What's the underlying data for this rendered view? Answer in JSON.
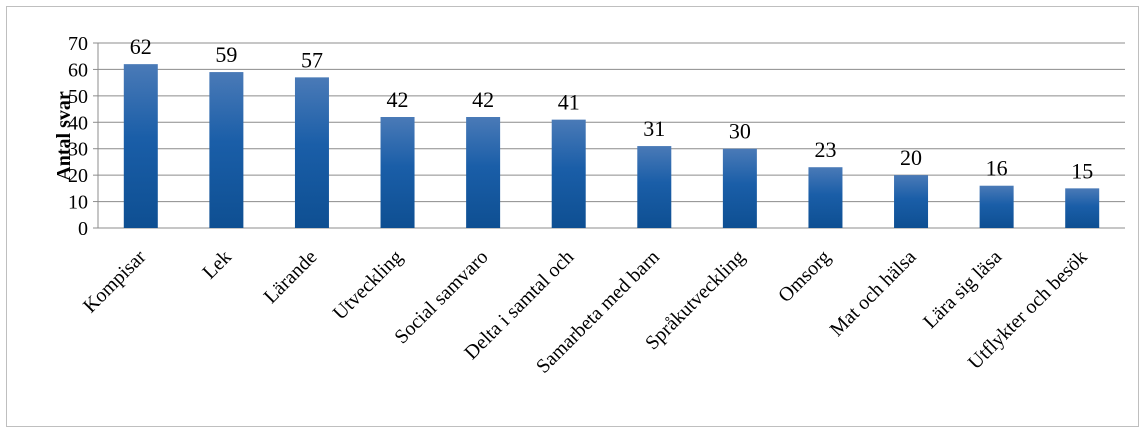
{
  "chart_data": {
    "type": "bar",
    "title": "",
    "xlabel": "",
    "ylabel": "Antal svar",
    "ylim": [
      0,
      70
    ],
    "yticks": [
      0,
      10,
      20,
      30,
      40,
      50,
      60,
      70
    ],
    "grid": true,
    "legend": "none",
    "bar_color_top": "#4a7ab7",
    "bar_color_mid": "#1a5ea8",
    "bar_color_bottom": "#0e4f92",
    "gridline_color": "#8c8c8c",
    "categories": [
      "Kompisar",
      "Lek",
      "Lärande",
      "Utveckling",
      "Social samvaro",
      "Delta i samtal och",
      "Samarbeta med barn",
      "Språkutveckling",
      "Omsorg",
      "Mat och hälsa",
      "Lära sig läsa",
      "Utflykter och besök"
    ],
    "values": [
      62,
      59,
      57,
      42,
      42,
      41,
      31,
      30,
      23,
      20,
      16,
      15
    ]
  }
}
